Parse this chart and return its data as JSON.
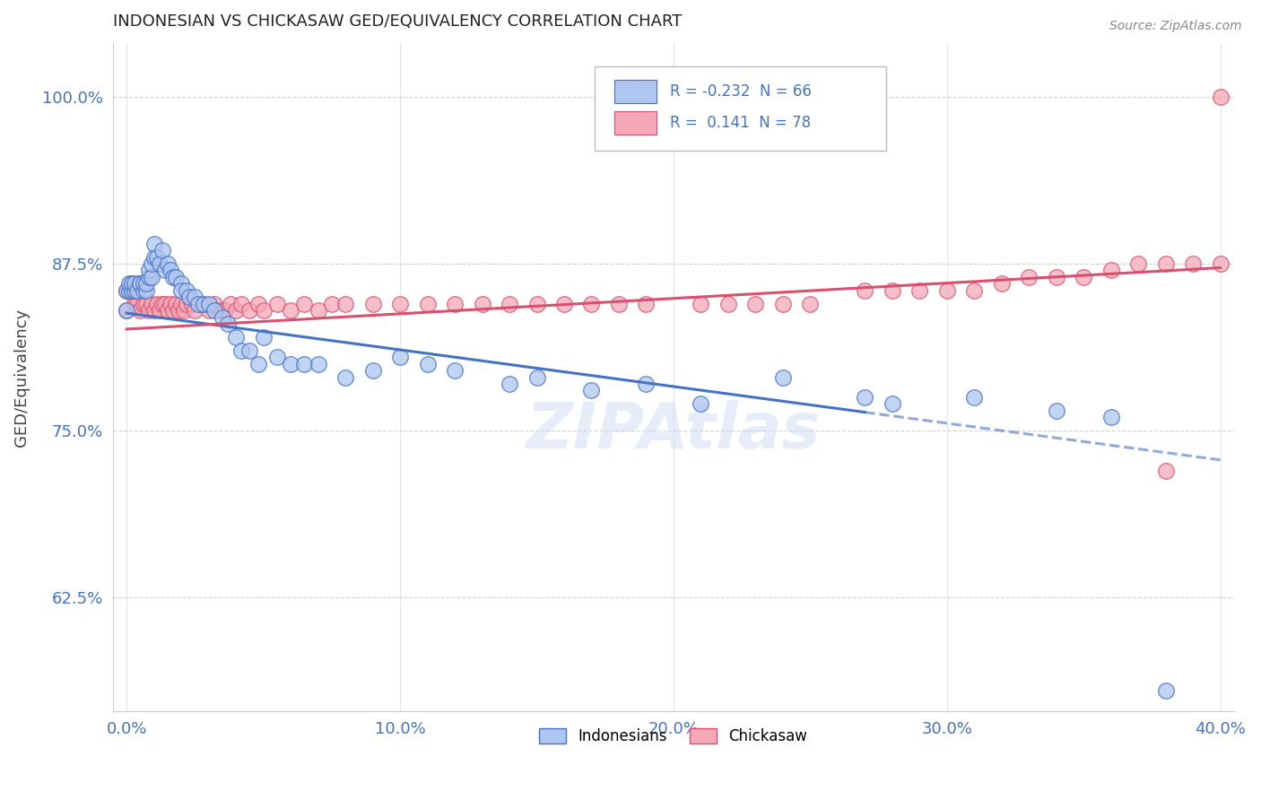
{
  "title": "INDONESIAN VS CHICKASAW GED/EQUIVALENCY CORRELATION CHART",
  "source": "Source: ZipAtlas.com",
  "xlabel_ticks": [
    "0.0%",
    "10.0%",
    "20.0%",
    "30.0%",
    "40.0%"
  ],
  "xlabel_vals": [
    0.0,
    0.1,
    0.2,
    0.3,
    0.4
  ],
  "ylabel": "GED/Equivalency",
  "ylabel_ticks": [
    "62.5%",
    "75.0%",
    "87.5%",
    "100.0%"
  ],
  "ylabel_vals": [
    0.625,
    0.75,
    0.875,
    1.0
  ],
  "xlim": [
    -0.005,
    0.405
  ],
  "ylim": [
    0.54,
    1.04
  ],
  "legend_r_blue": "-0.232",
  "legend_n_blue": "66",
  "legend_r_pink": "0.141",
  "legend_n_pink": "78",
  "blue_color": "#aec6f0",
  "pink_color": "#f4a8b8",
  "blue_line_color": "#4472c4",
  "pink_line_color": "#d94f6e",
  "watermark": "ZIPAtlas",
  "blue_line_x0": 0.0,
  "blue_line_y0": 0.838,
  "blue_line_x1": 0.4,
  "blue_line_y1": 0.728,
  "blue_line_solid_end": 0.27,
  "pink_line_x0": 0.0,
  "pink_line_y0": 0.826,
  "pink_line_x1": 0.4,
  "pink_line_y1": 0.872,
  "indonesians_x": [
    0.0,
    0.0,
    0.001,
    0.001,
    0.002,
    0.002,
    0.003,
    0.003,
    0.004,
    0.005,
    0.005,
    0.006,
    0.006,
    0.007,
    0.007,
    0.008,
    0.008,
    0.009,
    0.009,
    0.01,
    0.01,
    0.011,
    0.012,
    0.013,
    0.014,
    0.015,
    0.016,
    0.017,
    0.018,
    0.02,
    0.02,
    0.022,
    0.023,
    0.025,
    0.026,
    0.028,
    0.03,
    0.032,
    0.035,
    0.037,
    0.04,
    0.042,
    0.045,
    0.048,
    0.05,
    0.055,
    0.06,
    0.065,
    0.07,
    0.08,
    0.09,
    0.1,
    0.11,
    0.12,
    0.14,
    0.15,
    0.17,
    0.19,
    0.21,
    0.24,
    0.27,
    0.28,
    0.31,
    0.34,
    0.36,
    0.38
  ],
  "indonesians_y": [
    0.84,
    0.855,
    0.855,
    0.86,
    0.855,
    0.86,
    0.855,
    0.86,
    0.855,
    0.86,
    0.86,
    0.855,
    0.86,
    0.855,
    0.86,
    0.865,
    0.87,
    0.865,
    0.875,
    0.88,
    0.89,
    0.88,
    0.875,
    0.885,
    0.87,
    0.875,
    0.87,
    0.865,
    0.865,
    0.86,
    0.855,
    0.855,
    0.85,
    0.85,
    0.845,
    0.845,
    0.845,
    0.84,
    0.835,
    0.83,
    0.82,
    0.81,
    0.81,
    0.8,
    0.82,
    0.805,
    0.8,
    0.8,
    0.8,
    0.79,
    0.795,
    0.805,
    0.8,
    0.795,
    0.785,
    0.79,
    0.78,
    0.785,
    0.77,
    0.79,
    0.775,
    0.77,
    0.775,
    0.765,
    0.76,
    0.555
  ],
  "chickasaw_x": [
    0.0,
    0.0,
    0.001,
    0.002,
    0.002,
    0.003,
    0.003,
    0.004,
    0.005,
    0.005,
    0.006,
    0.007,
    0.008,
    0.009,
    0.01,
    0.011,
    0.012,
    0.013,
    0.014,
    0.015,
    0.016,
    0.017,
    0.018,
    0.019,
    0.02,
    0.021,
    0.022,
    0.024,
    0.025,
    0.027,
    0.03,
    0.032,
    0.034,
    0.036,
    0.038,
    0.04,
    0.042,
    0.045,
    0.048,
    0.05,
    0.055,
    0.06,
    0.065,
    0.07,
    0.075,
    0.08,
    0.09,
    0.1,
    0.11,
    0.12,
    0.13,
    0.14,
    0.15,
    0.16,
    0.17,
    0.18,
    0.19,
    0.21,
    0.22,
    0.23,
    0.24,
    0.25,
    0.27,
    0.28,
    0.29,
    0.3,
    0.31,
    0.32,
    0.33,
    0.34,
    0.35,
    0.36,
    0.37,
    0.38,
    0.39,
    0.4,
    0.38,
    0.4
  ],
  "chickasaw_y": [
    0.84,
    0.855,
    0.855,
    0.86,
    0.855,
    0.85,
    0.845,
    0.845,
    0.84,
    0.86,
    0.845,
    0.845,
    0.84,
    0.845,
    0.84,
    0.845,
    0.84,
    0.845,
    0.845,
    0.84,
    0.845,
    0.84,
    0.845,
    0.84,
    0.845,
    0.84,
    0.845,
    0.845,
    0.84,
    0.845,
    0.84,
    0.845,
    0.84,
    0.84,
    0.845,
    0.84,
    0.845,
    0.84,
    0.845,
    0.84,
    0.845,
    0.84,
    0.845,
    0.84,
    0.845,
    0.845,
    0.845,
    0.845,
    0.845,
    0.845,
    0.845,
    0.845,
    0.845,
    0.845,
    0.845,
    0.845,
    0.845,
    0.845,
    0.845,
    0.845,
    0.845,
    0.845,
    0.855,
    0.855,
    0.855,
    0.855,
    0.855,
    0.86,
    0.865,
    0.865,
    0.865,
    0.87,
    0.875,
    0.875,
    0.875,
    0.875,
    0.72,
    1.0
  ]
}
